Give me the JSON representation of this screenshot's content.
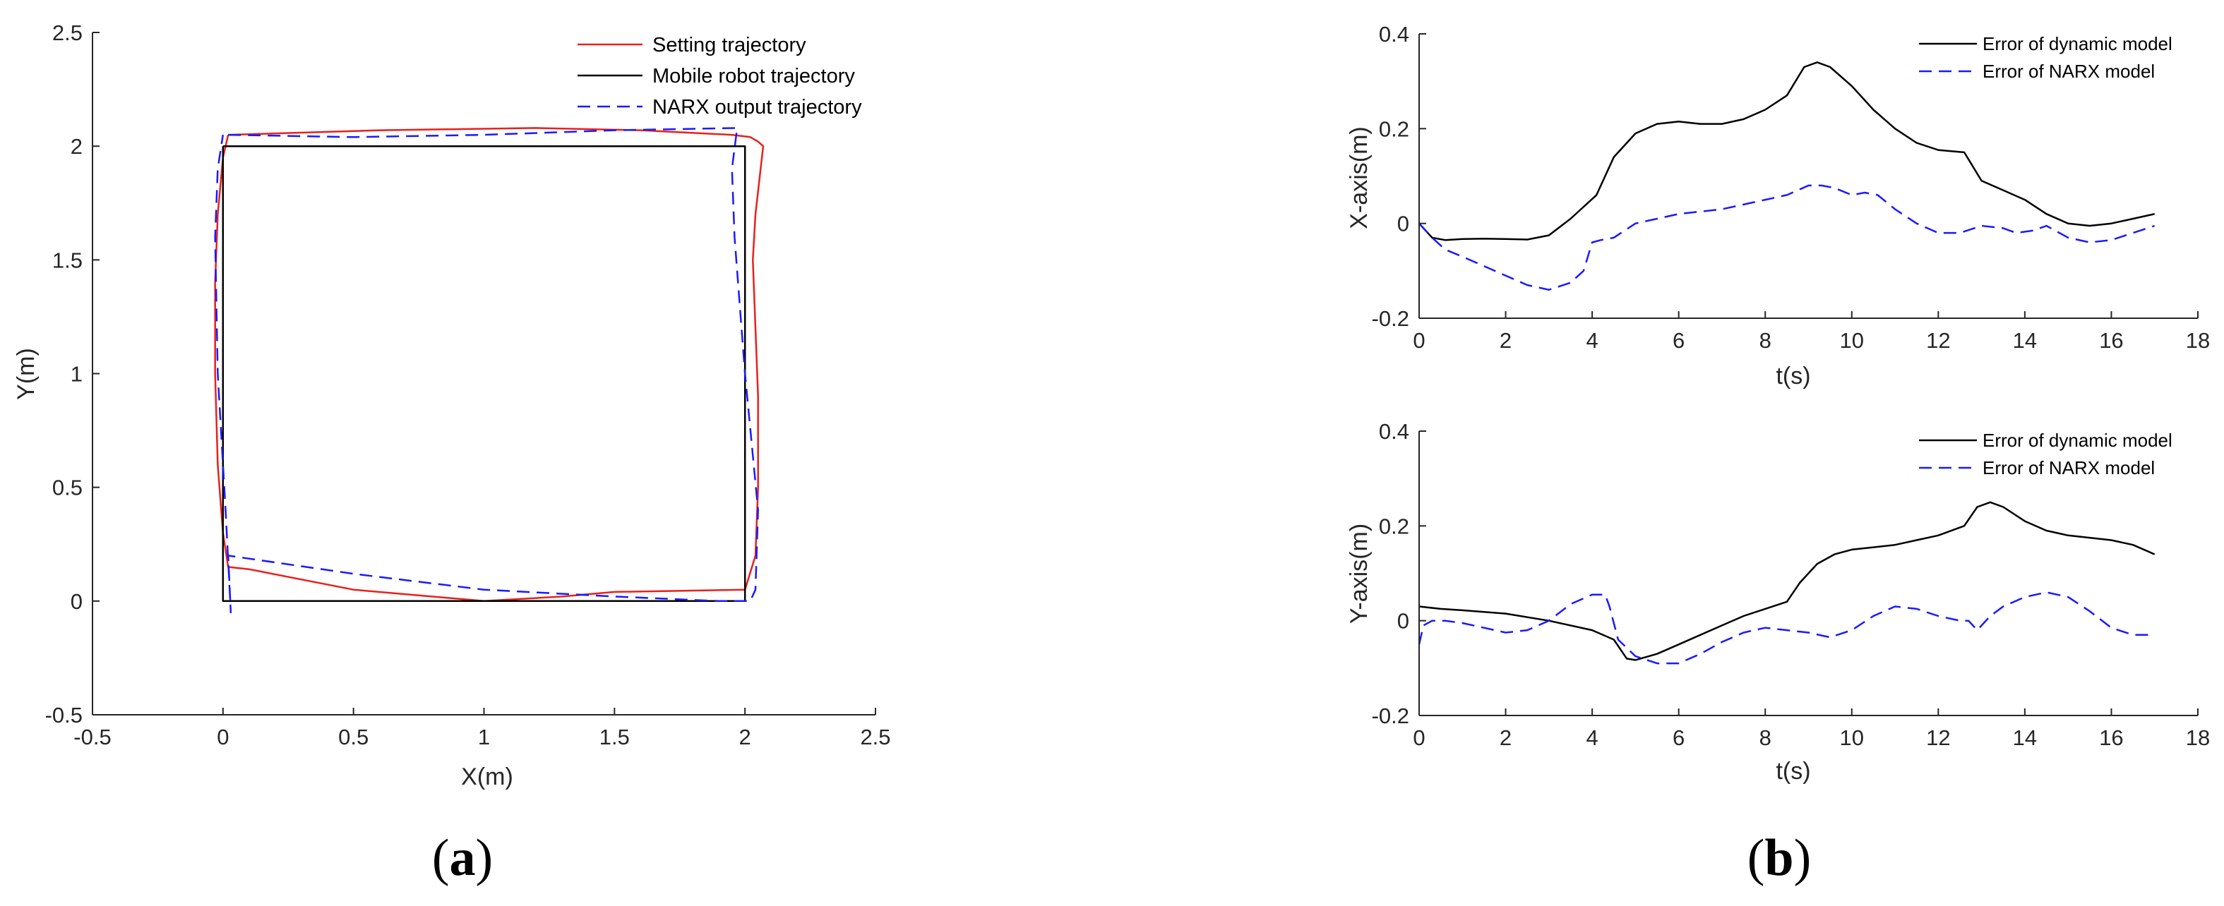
{
  "figure": {
    "panel_a": {
      "paren_open": "(",
      "letter": "a",
      "paren_close": ")"
    },
    "panel_b": {
      "paren_open": "(",
      "letter": "b",
      "paren_close": ")"
    }
  },
  "colors": {
    "setting": "#e8201c",
    "robot": "#000000",
    "narx": "#1a1aff",
    "axis": "#262626"
  },
  "chart_data": [
    {
      "id": "a",
      "type": "line",
      "title": "",
      "xlabel": "X(m)",
      "ylabel": "Y(m)",
      "xlim": [
        -0.5,
        2.5
      ],
      "ylim": [
        -0.5,
        2.5
      ],
      "xticks": [
        -0.5,
        0,
        0.5,
        1,
        1.5,
        2,
        2.5
      ],
      "xtick_labels": [
        "-0.5",
        "0",
        "0.5",
        "1",
        "1.5",
        "2",
        "2.5"
      ],
      "yticks": [
        -0.5,
        0,
        0.5,
        1,
        1.5,
        2,
        2.5
      ],
      "ytick_labels": [
        "-0.5",
        "0",
        "0.5",
        "1",
        "1.5",
        "2",
        "2.5"
      ],
      "legend_position": "top-right",
      "series": [
        {
          "name": "Setting trajectory",
          "color": "#e8201c",
          "style": "solid",
          "x": [
            0.02,
            0.6,
            1.2,
            1.6,
            1.95,
            2.02,
            2.05,
            2.07,
            2.06,
            2.04,
            2.03,
            2.04,
            2.05,
            2.05,
            2.04,
            2.0,
            1.5,
            1.3,
            1.0,
            0.5,
            0.1,
            0.02,
            0.0,
            -0.02,
            -0.03,
            -0.03,
            -0.02,
            0.0,
            0.02
          ],
          "y": [
            2.05,
            2.07,
            2.08,
            2.07,
            2.05,
            2.04,
            2.02,
            2.0,
            1.9,
            1.7,
            1.5,
            1.2,
            0.9,
            0.5,
            0.2,
            0.05,
            0.04,
            0.02,
            0.0,
            0.05,
            0.14,
            0.15,
            0.3,
            0.6,
            1.0,
            1.4,
            1.7,
            1.95,
            2.05
          ]
        },
        {
          "name": "Mobile robot trajectory",
          "color": "#000000",
          "style": "solid",
          "x": [
            0.0,
            1.0,
            2.0,
            2.0,
            2.0,
            1.0,
            0.0,
            0.0
          ],
          "y": [
            2.0,
            2.0,
            2.0,
            1.0,
            0.0,
            0.0,
            0.0,
            2.0
          ]
        },
        {
          "name": "NARX output trajectory",
          "color": "#1a1aff",
          "style": "dashed",
          "x": [
            0.02,
            0.5,
            1.0,
            1.5,
            1.97,
            1.95,
            1.96,
            2.0,
            2.05,
            2.04,
            2.02,
            1.9,
            1.5,
            1.0,
            0.5,
            0.02,
            0.03,
            0.01,
            -0.02,
            -0.03,
            -0.02,
            0.0
          ],
          "y": [
            2.05,
            2.04,
            2.05,
            2.07,
            2.08,
            1.9,
            1.6,
            1.0,
            0.4,
            0.05,
            0.0,
            0.0,
            0.02,
            0.05,
            0.12,
            0.2,
            -0.05,
            0.4,
            1.0,
            1.6,
            1.9,
            2.05
          ]
        }
      ]
    },
    {
      "id": "b_top",
      "type": "line",
      "title": "",
      "xlabel": "t(s)",
      "ylabel": "X-axis(m)",
      "xlim": [
        0,
        18
      ],
      "ylim": [
        -0.2,
        0.4
      ],
      "xticks": [
        0,
        2,
        4,
        6,
        8,
        10,
        12,
        14,
        16,
        18
      ],
      "xtick_labels": [
        "0",
        "2",
        "4",
        "6",
        "8",
        "10",
        "12",
        "14",
        "16",
        "18"
      ],
      "yticks": [
        -0.2,
        0,
        0.2,
        0.4
      ],
      "ytick_labels": [
        "-0.2",
        "0",
        "0.2",
        "0.4"
      ],
      "legend_position": "top-right",
      "series": [
        {
          "name": "Error of dynamic model",
          "color": "#000000",
          "style": "solid",
          "x": [
            0,
            0.3,
            0.6,
            1.0,
            1.5,
            2.0,
            2.5,
            3.0,
            3.5,
            4.1,
            4.5,
            5.0,
            5.5,
            6.0,
            6.5,
            7.0,
            7.5,
            8.0,
            8.5,
            8.9,
            9.2,
            9.5,
            10.0,
            10.5,
            11.0,
            11.5,
            12.0,
            12.6,
            12.8,
            13.0,
            13.5,
            14.0,
            14.5,
            15.0,
            15.5,
            16.0,
            16.5,
            17.0
          ],
          "y": [
            0.0,
            -0.03,
            -0.035,
            -0.033,
            -0.032,
            -0.033,
            -0.034,
            -0.025,
            0.01,
            0.06,
            0.14,
            0.19,
            0.21,
            0.215,
            0.21,
            0.21,
            0.22,
            0.24,
            0.27,
            0.33,
            0.34,
            0.33,
            0.29,
            0.24,
            0.2,
            0.17,
            0.155,
            0.15,
            0.12,
            0.09,
            0.07,
            0.05,
            0.02,
            0.0,
            -0.005,
            0.0,
            0.01,
            0.02
          ]
        },
        {
          "name": "Error of NARX model",
          "color": "#1a1aff",
          "style": "dashed",
          "x": [
            0,
            0.3,
            0.6,
            1.0,
            1.5,
            2.0,
            2.5,
            3.0,
            3.5,
            3.8,
            4.0,
            4.2,
            4.5,
            5.0,
            5.5,
            6.0,
            7.0,
            8.0,
            8.5,
            9.0,
            9.3,
            9.6,
            10.0,
            10.3,
            10.6,
            11.0,
            11.5,
            12.0,
            12.5,
            13.0,
            13.5,
            13.8,
            14.2,
            14.5,
            15.0,
            15.5,
            16.0,
            16.5,
            17.0
          ],
          "y": [
            0.0,
            -0.03,
            -0.055,
            -0.07,
            -0.09,
            -0.11,
            -0.13,
            -0.14,
            -0.125,
            -0.1,
            -0.04,
            -0.035,
            -0.03,
            0.0,
            0.01,
            0.02,
            0.03,
            0.05,
            0.06,
            0.08,
            0.08,
            0.075,
            0.06,
            0.065,
            0.06,
            0.03,
            0.0,
            -0.02,
            -0.02,
            -0.005,
            -0.01,
            -0.02,
            -0.015,
            -0.005,
            -0.03,
            -0.04,
            -0.035,
            -0.02,
            -0.005
          ]
        }
      ]
    },
    {
      "id": "b_bottom",
      "type": "line",
      "title": "",
      "xlabel": "t(s)",
      "ylabel": "Y-axis(m)",
      "xlim": [
        0,
        18
      ],
      "ylim": [
        -0.2,
        0.4
      ],
      "xticks": [
        0,
        2,
        4,
        6,
        8,
        10,
        12,
        14,
        16,
        18
      ],
      "xtick_labels": [
        "0",
        "2",
        "4",
        "6",
        "8",
        "10",
        "12",
        "14",
        "16",
        "18"
      ],
      "yticks": [
        -0.2,
        0,
        0.2,
        0.4
      ],
      "ytick_labels": [
        "-0.2",
        "0",
        "0.2",
        "0.4"
      ],
      "legend_position": "top-right",
      "series": [
        {
          "name": "Error of dynamic model",
          "color": "#000000",
          "style": "solid",
          "x": [
            0,
            0.5,
            1.0,
            2.0,
            3.0,
            4.0,
            4.5,
            4.8,
            5.0,
            5.5,
            6.0,
            6.5,
            7.0,
            7.5,
            8.0,
            8.5,
            8.8,
            9.2,
            9.6,
            10.0,
            10.5,
            11.0,
            11.5,
            12.0,
            12.6,
            12.9,
            13.2,
            13.5,
            14.0,
            14.5,
            15.0,
            15.5,
            16.0,
            16.5,
            17.0
          ],
          "y": [
            0.03,
            0.025,
            0.022,
            0.015,
            0.0,
            -0.02,
            -0.04,
            -0.08,
            -0.083,
            -0.07,
            -0.05,
            -0.03,
            -0.01,
            0.01,
            0.025,
            0.04,
            0.08,
            0.12,
            0.14,
            0.15,
            0.155,
            0.16,
            0.17,
            0.18,
            0.2,
            0.24,
            0.25,
            0.24,
            0.21,
            0.19,
            0.18,
            0.175,
            0.17,
            0.16,
            0.14
          ]
        },
        {
          "name": "Error of NARX model",
          "color": "#1a1aff",
          "style": "dashed",
          "x": [
            0,
            0.1,
            0.3,
            0.6,
            1.0,
            1.5,
            2.0,
            2.5,
            3.0,
            3.5,
            4.0,
            4.3,
            4.4,
            4.6,
            5.0,
            5.5,
            6.0,
            6.5,
            7.0,
            7.5,
            8.0,
            8.5,
            9.0,
            9.5,
            10.0,
            10.5,
            11.0,
            11.5,
            12.0,
            12.5,
            12.7,
            12.9,
            13.2,
            13.5,
            14.0,
            14.5,
            15.0,
            15.5,
            16.0,
            16.5,
            17.0
          ],
          "y": [
            -0.05,
            -0.01,
            0.0,
            0.0,
            -0.005,
            -0.015,
            -0.025,
            -0.02,
            0.0,
            0.035,
            0.055,
            0.055,
            0.03,
            -0.04,
            -0.075,
            -0.09,
            -0.09,
            -0.07,
            -0.045,
            -0.025,
            -0.015,
            -0.02,
            -0.025,
            -0.035,
            -0.02,
            0.01,
            0.03,
            0.025,
            0.01,
            0.0,
            0.0,
            -0.02,
            0.01,
            0.03,
            0.05,
            0.06,
            0.05,
            0.02,
            -0.015,
            -0.03,
            -0.03
          ]
        }
      ]
    }
  ]
}
